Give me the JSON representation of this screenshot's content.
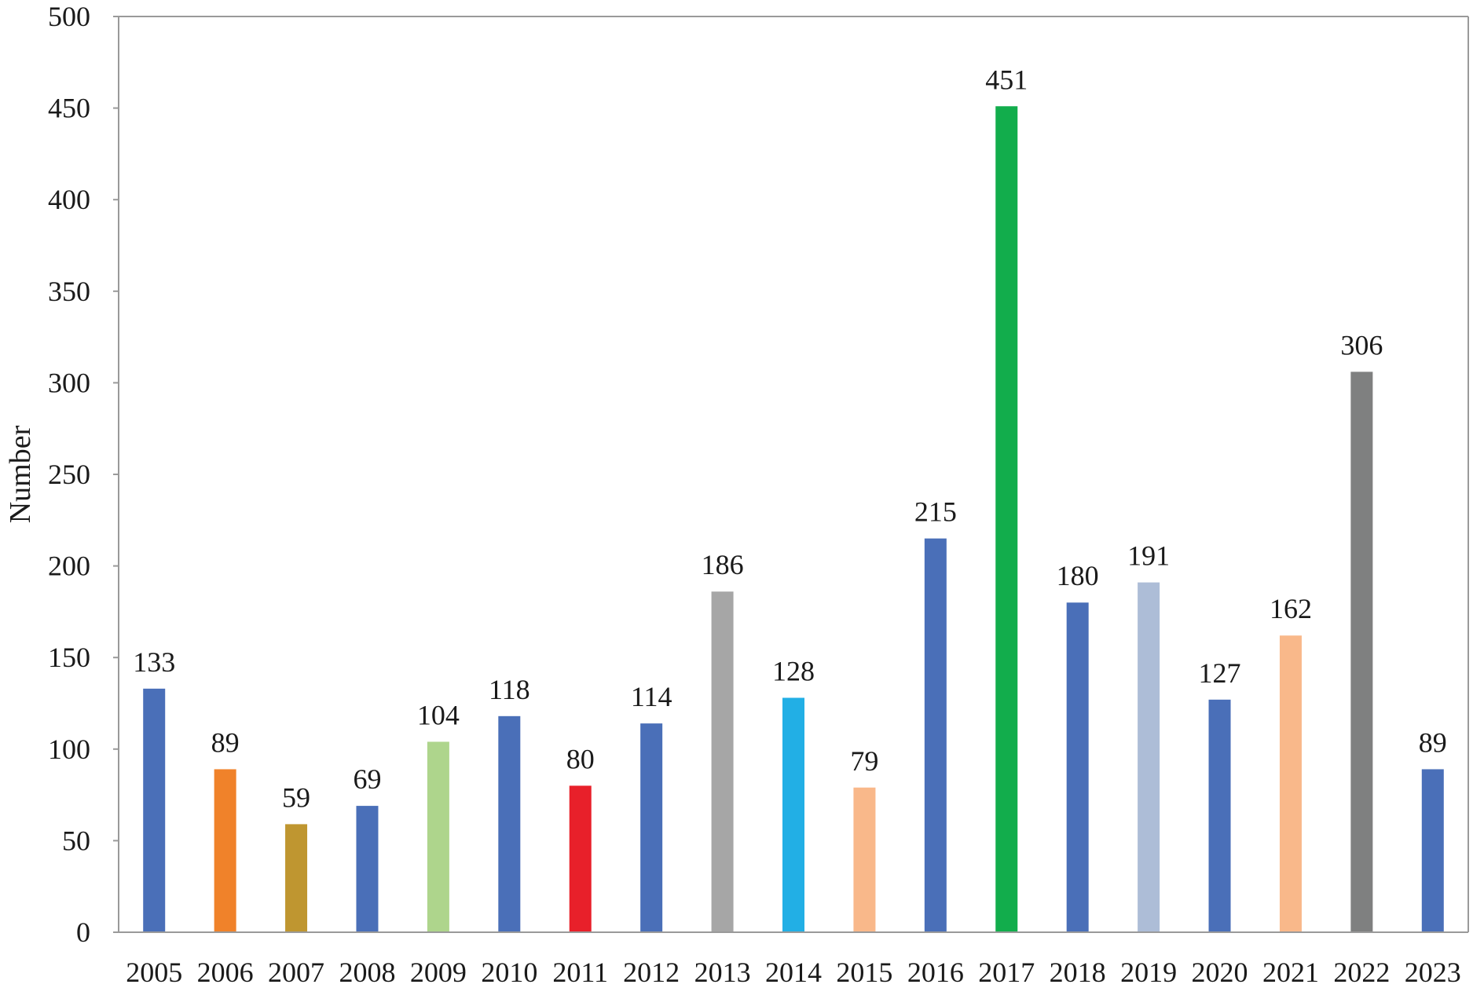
{
  "chart_data": {
    "type": "bar",
    "title": "",
    "xlabel": "",
    "ylabel": "Number",
    "ylim": [
      0,
      500
    ],
    "yticks": [
      0,
      50,
      100,
      150,
      200,
      250,
      300,
      350,
      400,
      450,
      500
    ],
    "grid": false,
    "legend": "none",
    "categories": [
      "2005",
      "2006",
      "2007",
      "2008",
      "2009",
      "2010",
      "2011",
      "2012",
      "2013",
      "2014",
      "2015",
      "2016",
      "2017",
      "2018",
      "2019",
      "2020",
      "2021",
      "2022",
      "2023"
    ],
    "values": [
      133,
      89,
      59,
      69,
      104,
      118,
      80,
      114,
      186,
      128,
      79,
      215,
      451,
      180,
      191,
      127,
      162,
      306,
      89
    ],
    "data_labels": [
      "133",
      "89",
      "59",
      "69",
      "104",
      "118",
      "80",
      "114",
      "186",
      "128",
      "79",
      "215",
      "451",
      "180",
      "191",
      "127",
      "162",
      "306",
      "89"
    ],
    "colors": [
      "#4a6fb8",
      "#f0822a",
      "#bf9630",
      "#4a6fb8",
      "#aed58c",
      "#4a6fb8",
      "#e8202a",
      "#4a6fb8",
      "#a6a6a6",
      "#22afe5",
      "#f9b88a",
      "#4a6fb8",
      "#12ad4c",
      "#4a6fb8",
      "#adbdd7",
      "#4a6fb8",
      "#f9b88a",
      "#7f8080",
      "#4a6fb8"
    ]
  }
}
